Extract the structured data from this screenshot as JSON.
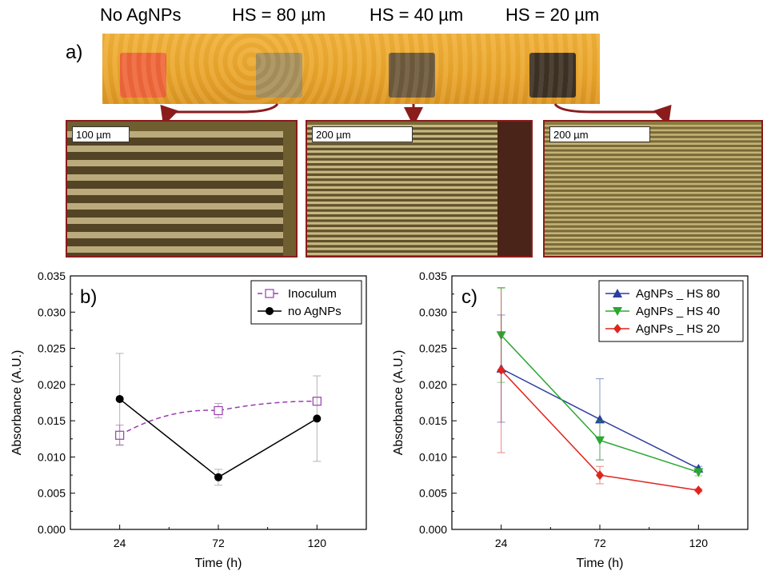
{
  "panel_a": {
    "letter": "a)",
    "samples": [
      {
        "label": "No AgNPs",
        "color": "#f0673a"
      },
      {
        "label": "HS = 80 µm",
        "color": "#a8905a"
      },
      {
        "label": "HS = 40 µm",
        "color": "#6e5a3c"
      },
      {
        "label": "HS = 20 µm",
        "color": "#3e3224"
      }
    ],
    "micrographs": [
      {
        "scale_label": "100 µm"
      },
      {
        "scale_label": "200 µm"
      },
      {
        "scale_label": "200 µm"
      }
    ],
    "arrow_color": "#8b1c1c"
  },
  "chart_data": [
    {
      "type": "line",
      "panel_letter": "b)",
      "x": [
        24,
        72,
        120
      ],
      "xticks": [
        "24",
        "72",
        "120"
      ],
      "xlabel": "Time (h)",
      "ylabel": "Absorbance (A.U.)",
      "xlim": [
        0,
        144
      ],
      "ylim": [
        0.0,
        0.035
      ],
      "yticks": [
        "0.000",
        "0.005",
        "0.010",
        "0.015",
        "0.020",
        "0.025",
        "0.030",
        "0.035"
      ],
      "legend_position": "top-right",
      "series": [
        {
          "name": "Inoculum",
          "values": [
            0.013,
            0.0164,
            0.0177
          ],
          "errors": [
            0.0014,
            0.001,
            0.0003
          ],
          "color": "#9a3cb0",
          "dash": true,
          "marker": "open-square"
        },
        {
          "name": "no AgNPs",
          "values": [
            0.018,
            0.0072,
            0.0153
          ],
          "errors": [
            0.0063,
            0.0011,
            0.0059
          ],
          "color": "#000000",
          "dash": false,
          "marker": "circle"
        }
      ]
    },
    {
      "type": "line",
      "panel_letter": "c)",
      "x": [
        24,
        72,
        120
      ],
      "xticks": [
        "24",
        "72",
        "120"
      ],
      "xlabel": "Time (h)",
      "ylabel": "Absorbance (A.U.)",
      "xlim": [
        0,
        144
      ],
      "ylim": [
        0.0,
        0.035
      ],
      "yticks": [
        "0.000",
        "0.005",
        "0.010",
        "0.015",
        "0.020",
        "0.025",
        "0.030",
        "0.035"
      ],
      "legend_position": "top-right",
      "series": [
        {
          "name": "AgNPs _ HS 80",
          "values": [
            0.0222,
            0.0152,
            0.0084
          ],
          "errors": [
            0.0074,
            0.0056,
            0.0003
          ],
          "color": "#2b3f9e",
          "dash": false,
          "marker": "triangle-up"
        },
        {
          "name": "AgNPs _ HS 40",
          "values": [
            0.0268,
            0.0123,
            0.0079
          ],
          "errors": [
            0.0065,
            0.0027,
            0.0005
          ],
          "color": "#2aa832",
          "dash": false,
          "marker": "triangle-down"
        },
        {
          "name": "AgNPs _ HS 20",
          "values": [
            0.022,
            0.0075,
            0.0054
          ],
          "errors": [
            0.0114,
            0.0012,
            0.0002
          ],
          "color": "#e0241c",
          "dash": false,
          "marker": "diamond"
        }
      ]
    }
  ]
}
